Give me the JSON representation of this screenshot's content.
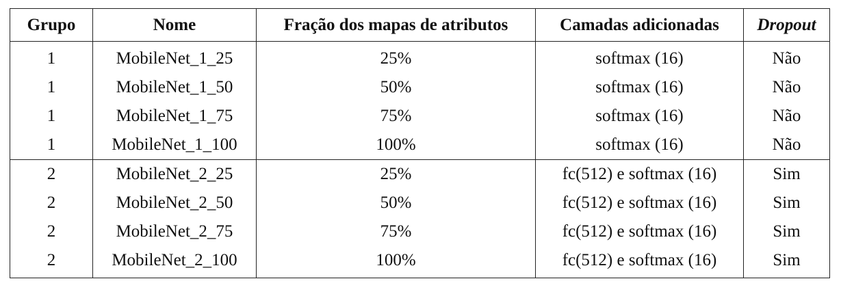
{
  "table": {
    "headers": [
      "Grupo",
      "Nome",
      "Fração dos mapas de atributos",
      "Camadas adicionadas",
      "Dropout"
    ],
    "rows": [
      [
        "1",
        "MobileNet_1_25",
        "25%",
        "softmax (16)",
        "Não"
      ],
      [
        "1",
        "MobileNet_1_50",
        "50%",
        "softmax (16)",
        "Não"
      ],
      [
        "1",
        "MobileNet_1_75",
        "75%",
        "softmax (16)",
        "Não"
      ],
      [
        "1",
        "MobileNet_1_100",
        "100%",
        "softmax (16)",
        "Não"
      ],
      [
        "2",
        "MobileNet_2_25",
        "25%",
        "fc(512) e softmax (16)",
        "Sim"
      ],
      [
        "2",
        "MobileNet_2_50",
        "50%",
        "fc(512) e softmax (16)",
        "Sim"
      ],
      [
        "2",
        "MobileNet_2_75",
        "75%",
        "fc(512) e softmax (16)",
        "Sim"
      ],
      [
        "2",
        "MobileNet_2_100",
        "100%",
        "fc(512) e softmax (16)",
        "Sim"
      ]
    ]
  }
}
